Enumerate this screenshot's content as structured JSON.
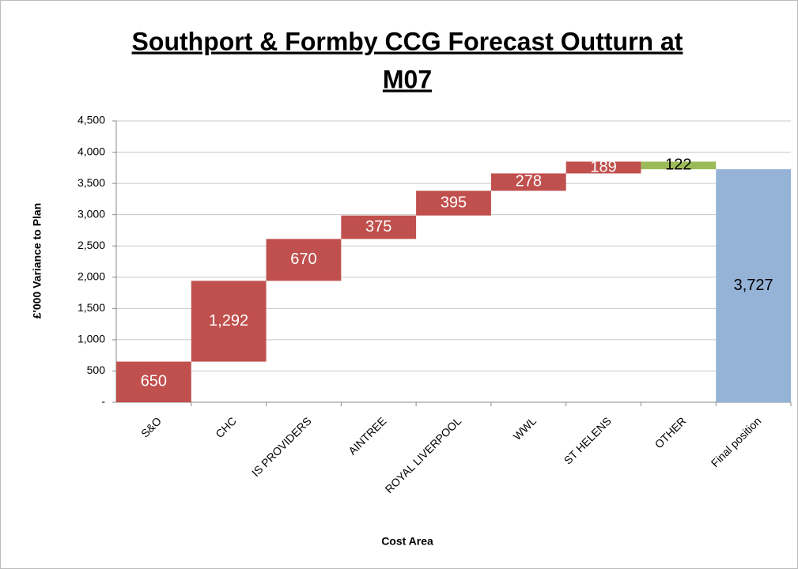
{
  "chart_data": {
    "type": "waterfall",
    "title_lines": [
      "Southport & Formby CCG Forecast Outturn at",
      "M07"
    ],
    "x_label": "Cost Area",
    "y_label": "£'000 Variance to Plan",
    "categories": [
      "S&O",
      "CHC",
      "IS PROVIDERS",
      "AINTREE",
      "ROYAL LIVERPOOL",
      "WWL",
      "ST HELENS",
      "OTHER",
      "Final position"
    ],
    "values": [
      650,
      1292,
      670,
      375,
      395,
      278,
      189,
      -122,
      3727
    ],
    "value_labels": [
      "650",
      "1,292",
      "670",
      "375",
      "395",
      "278",
      "189",
      "122",
      "3,727"
    ],
    "is_total": [
      false,
      false,
      false,
      false,
      false,
      false,
      false,
      false,
      true
    ],
    "colors": {
      "increase": "#c0504d",
      "decrease": "#9bbb59",
      "total": "#95b3d7"
    },
    "ylim": [
      0,
      4500
    ],
    "yticks": [
      {
        "value": 0,
        "label": "-"
      },
      500,
      {
        "value": 1000,
        "label": "1,000"
      },
      {
        "value": 1500,
        "label": "1,500"
      },
      {
        "value": 2000,
        "label": "2,000"
      },
      {
        "value": 2500,
        "label": "2,500"
      },
      {
        "value": 3000,
        "label": "3,000"
      },
      {
        "value": 3500,
        "label": "3,500"
      },
      {
        "value": 4000,
        "label": "4,000"
      },
      {
        "value": 4500,
        "label": "4,500"
      }
    ],
    "grid": true
  }
}
